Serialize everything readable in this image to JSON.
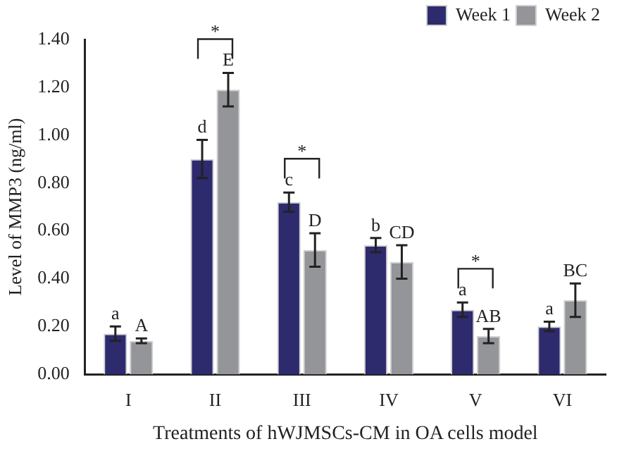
{
  "chart_data": {
    "type": "bar",
    "xlabel": "Treatments of hWJMSCs-CM in OA cells model",
    "ylabel": "Level of MMP3 (ng/ml)",
    "categories": [
      "I",
      "II",
      "III",
      "IV",
      "V",
      "VI"
    ],
    "series": [
      {
        "name": "Week 1",
        "color": "#2e2a6e",
        "values": [
          0.17,
          0.9,
          0.72,
          0.54,
          0.27,
          0.2
        ],
        "errors": [
          0.03,
          0.08,
          0.04,
          0.03,
          0.03,
          0.02
        ],
        "value_labels": [
          "a",
          "d",
          "c",
          "b",
          "a",
          "a"
        ]
      },
      {
        "name": "Week 2",
        "color": "#939598",
        "values": [
          0.14,
          1.19,
          0.52,
          0.47,
          0.16,
          0.31
        ],
        "errors": [
          0.01,
          0.07,
          0.07,
          0.07,
          0.03,
          0.07
        ],
        "value_labels": [
          "A",
          "E",
          "D",
          "CD",
          "AB",
          "BC"
        ]
      }
    ],
    "annotations": [
      "*",
      "*",
      "*"
    ],
    "ylim": [
      0,
      1.4
    ],
    "yticks": [
      {
        "value": 0,
        "label": "0.00"
      },
      {
        "value": 0.2,
        "label": "0.20"
      },
      {
        "value": 0.4,
        "label": "0.40"
      },
      {
        "value": 0.6,
        "label": "0.60"
      },
      {
        "value": 0.8,
        "label": "0.80"
      },
      {
        "value": 1.0,
        "label": "1.00"
      },
      {
        "value": 1.2,
        "label": "1.20"
      },
      {
        "value": 1.4,
        "label": "1.40"
      }
    ],
    "grid": false,
    "legend": "top right"
  }
}
